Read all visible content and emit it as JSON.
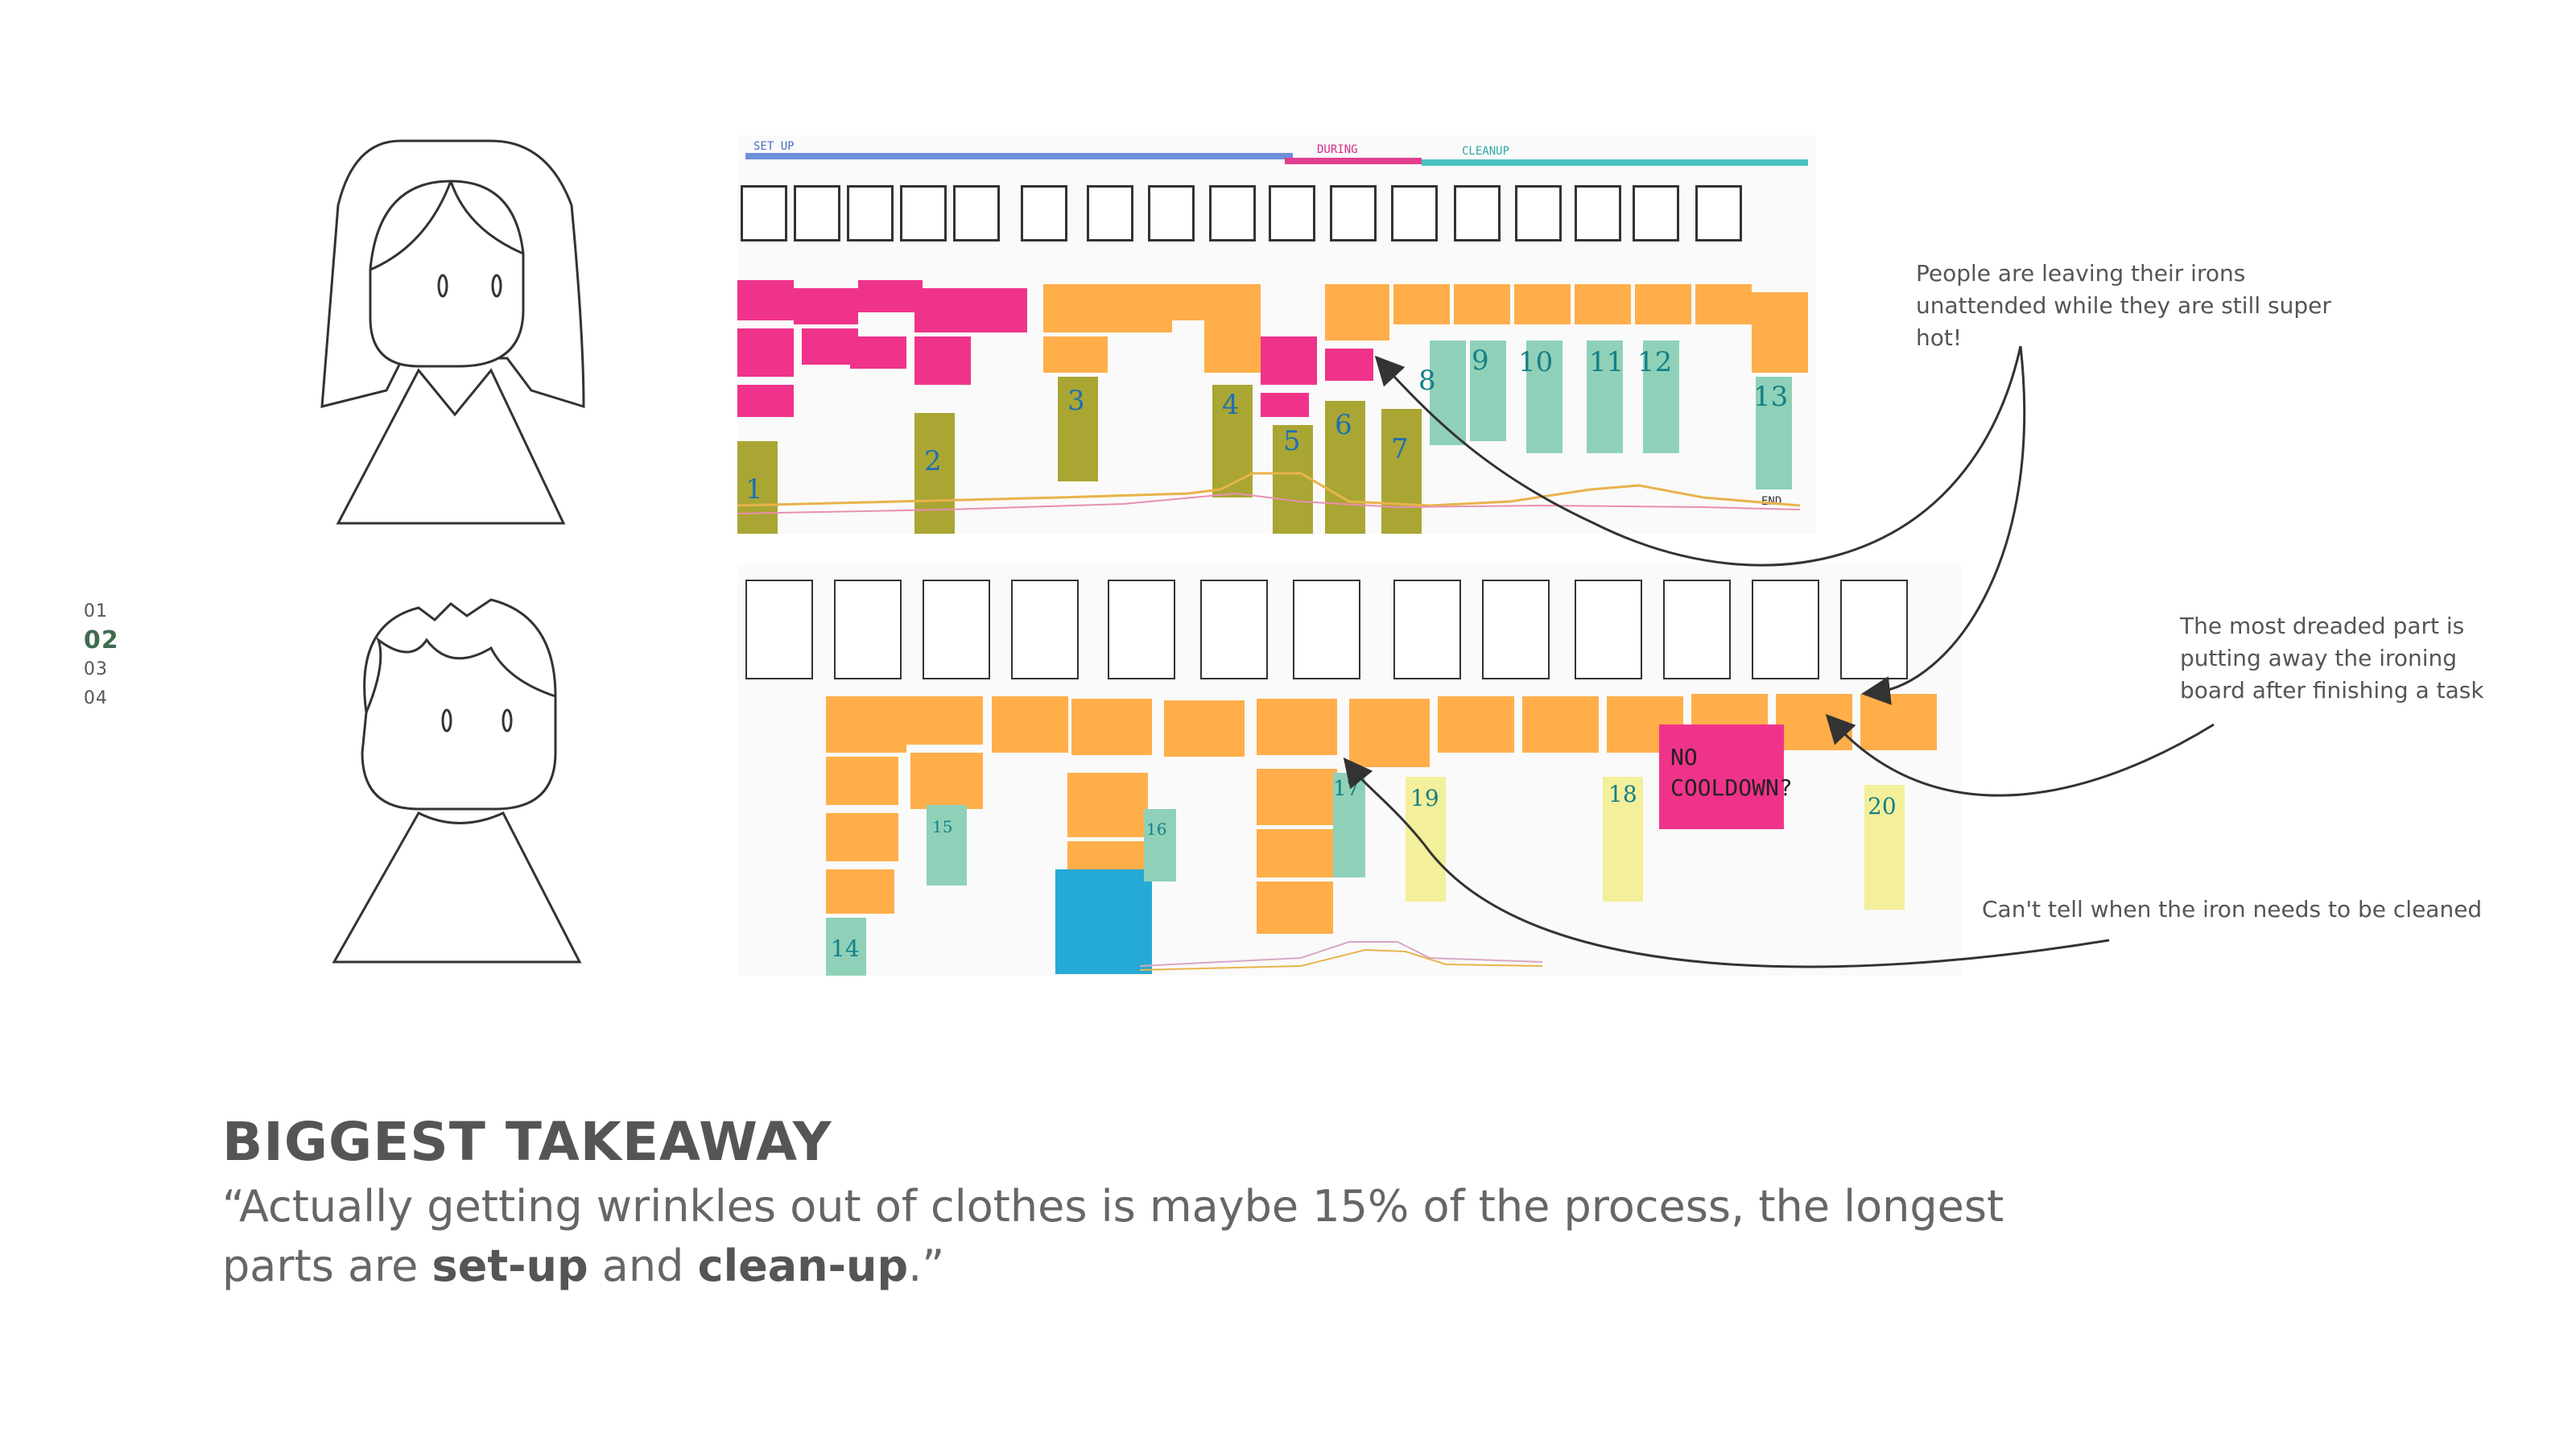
{
  "nav": {
    "items": [
      {
        "label": "01",
        "active": false
      },
      {
        "label": "02",
        "active": true
      },
      {
        "label": "03",
        "active": false
      },
      {
        "label": "04",
        "active": false
      }
    ],
    "active_color": "#3f6b4f"
  },
  "board_top": {
    "phase_labels": {
      "setup": "SET UP",
      "during": "DURING",
      "cleanup": "CLEANUP"
    },
    "numbers": [
      "1",
      "2",
      "3",
      "4",
      "5",
      "6",
      "7",
      "8",
      "9",
      "10",
      "11",
      "12",
      "13"
    ],
    "end_label": "END"
  },
  "board_bottom": {
    "numbers": [
      "14",
      "15",
      "16",
      "17",
      "18",
      "19",
      "20"
    ],
    "sticky_note_text": "NO COOLDOWN?"
  },
  "annotations": {
    "irons_unattended": "People are leaving their irons unattended while they are still super hot!",
    "dreaded_part": "The most dreaded part is putting away the ironing board after finishing a task",
    "cleaning": "Can't tell when the iron needs to be cleaned"
  },
  "takeaway": {
    "heading": "BIGGEST TAKEAWAY",
    "quote_start": "“Actually getting wrinkles out of clothes is maybe 15% of the process, the longest parts are ",
    "bold_1": "set-up",
    "middle": " and ",
    "bold_2": "clean-up",
    "quote_end": ".”"
  },
  "colors": {
    "pink": "#f0338a",
    "orange": "#ffae4a",
    "olive": "#a9a634",
    "teal": "#8fd1b8",
    "yellow": "#f3ef9a",
    "blue": "#25a9d6",
    "accent_green": "#3f6b4f"
  }
}
